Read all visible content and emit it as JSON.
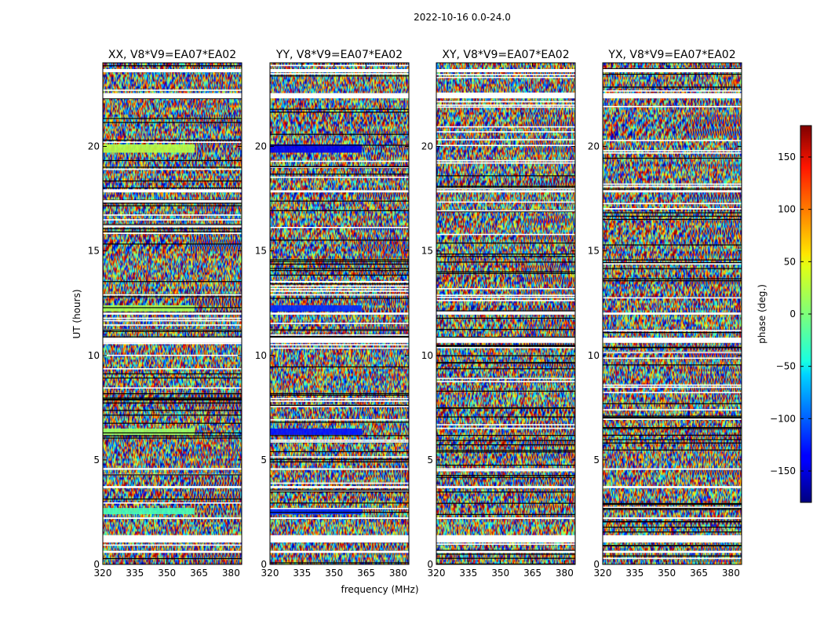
{
  "chart_data": {
    "type": "heatmap",
    "suptitle": "2022-10-16 0.0-24.0",
    "xlabel": "frequency (MHz)",
    "ylabel": "UT (hours)",
    "xlim": [
      320,
      385
    ],
    "ylim": [
      0,
      24
    ],
    "xticks": [
      320,
      335,
      350,
      365,
      380
    ],
    "yticks": [
      0,
      5,
      10,
      15,
      20
    ],
    "panels": [
      {
        "title": "XX, V8*V9=EA07*EA02",
        "pol": "XX"
      },
      {
        "title": "YY, V8*V9=EA07*EA02",
        "pol": "YY"
      },
      {
        "title": "XY, V8*V9=EA07*EA02",
        "pol": "XY"
      },
      {
        "title": "YX, V8*V9=EA07*EA02",
        "pol": "YX"
      }
    ],
    "colorbar": {
      "label": "phase (deg.)",
      "range": [
        -180,
        180
      ],
      "ticks": [
        150,
        100,
        50,
        0,
        -50,
        -100,
        -150
      ],
      "tick_labels": [
        "150",
        "100",
        "50",
        "0",
        "−50",
        "−100",
        "−150"
      ],
      "colormap": "jet"
    },
    "flagged_bands_ut": [
      [
        0.55,
        0.65
      ],
      [
        1.05,
        1.4
      ],
      [
        2.2,
        2.25
      ],
      [
        3.65,
        3.75
      ],
      [
        4.55,
        4.6
      ],
      [
        10.6,
        10.85
      ],
      [
        11.95,
        12.05
      ],
      [
        17.8,
        17.9
      ],
      [
        22.3,
        22.55
      ],
      [
        23.55,
        23.7
      ]
    ],
    "coherent_segments_ut": [
      [
        2.4,
        2.7,
        0,
        363,
        -20,
        -120
      ],
      [
        6.2,
        6.5,
        0,
        363,
        10,
        -130
      ],
      [
        12.1,
        12.4,
        0,
        363,
        15,
        -120
      ],
      [
        19.7,
        20.1,
        0,
        363,
        20,
        -140
      ]
    ]
  }
}
